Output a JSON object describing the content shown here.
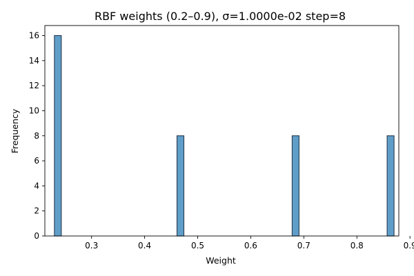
{
  "chart_data": {
    "type": "bar",
    "title": "RBF weights (0.2–0.9), σ=1.0000e-02 step=8",
    "xlabel": "Weight",
    "ylabel": "Frequency",
    "xlim": [
      0.212,
      0.879
    ],
    "ylim": [
      0,
      16.8
    ],
    "xticks": [
      "0.3",
      "0.4",
      "0.5",
      "0.6",
      "0.7",
      "0.8",
      "0.9"
    ],
    "yticks": [
      "0",
      "2",
      "4",
      "6",
      "8",
      "10",
      "12",
      "14",
      "16"
    ],
    "bins": [
      {
        "x0": 0.23,
        "x1": 0.243,
        "count": 16
      },
      {
        "x0": 0.461,
        "x1": 0.474,
        "count": 8
      },
      {
        "x0": 0.678,
        "x1": 0.691,
        "count": 8
      },
      {
        "x0": 0.857,
        "x1": 0.87,
        "count": 8
      }
    ],
    "bar_color": "#5f9ec9",
    "edge_color": "#28394d",
    "grid": false,
    "legend": false
  }
}
